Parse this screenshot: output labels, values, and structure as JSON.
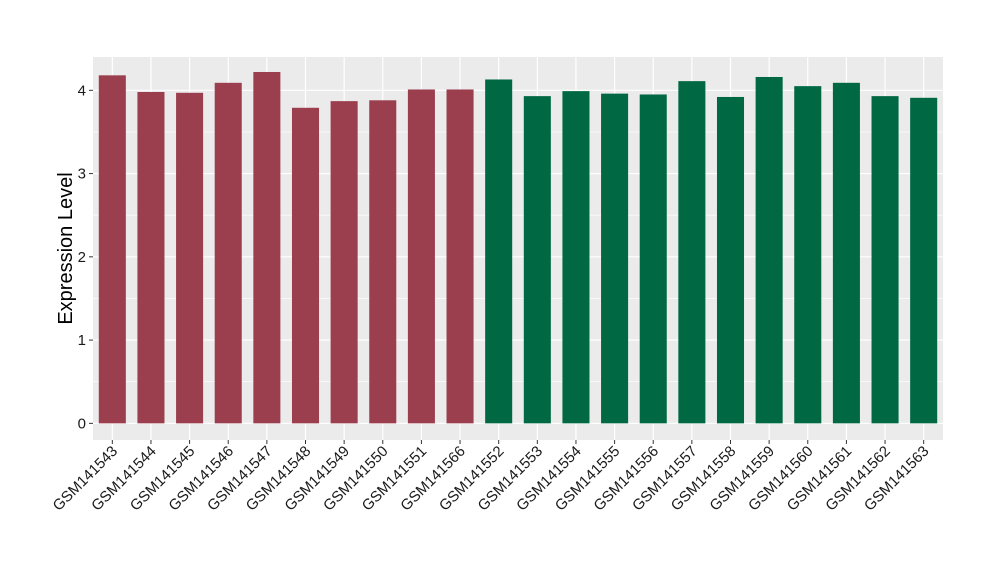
{
  "chart_data": {
    "type": "bar",
    "title": "",
    "xlabel": "",
    "ylabel": "Expression Level",
    "ylim": [
      -0.2,
      4.4
    ],
    "yticks": [
      0,
      1,
      2,
      3,
      4
    ],
    "grid": true,
    "legend": "none",
    "categories": [
      "GSM141543",
      "GSM141544",
      "GSM141545",
      "GSM141546",
      "GSM141547",
      "GSM141548",
      "GSM141549",
      "GSM141550",
      "GSM141551",
      "GSM141566",
      "GSM141552",
      "GSM141553",
      "GSM141554",
      "GSM141555",
      "GSM141556",
      "GSM141557",
      "GSM141558",
      "GSM141559",
      "GSM141560",
      "GSM141561",
      "GSM141562",
      "GSM141563"
    ],
    "values": [
      4.18,
      3.98,
      3.97,
      4.09,
      4.22,
      3.79,
      3.87,
      3.88,
      4.01,
      4.01,
      4.13,
      3.93,
      3.99,
      3.96,
      3.95,
      4.11,
      3.92,
      4.16,
      4.05,
      4.09,
      3.93,
      3.91
    ],
    "bar_colors": [
      "#9b3f4f",
      "#9b3f4f",
      "#9b3f4f",
      "#9b3f4f",
      "#9b3f4f",
      "#9b3f4f",
      "#9b3f4f",
      "#9b3f4f",
      "#9b3f4f",
      "#9b3f4f",
      "#006843",
      "#006843",
      "#006843",
      "#006843",
      "#006843",
      "#006843",
      "#006843",
      "#006843",
      "#006843",
      "#006843",
      "#006843",
      "#006843"
    ],
    "panel_background": "#ebebeb",
    "grid_color": "#ffffff"
  }
}
